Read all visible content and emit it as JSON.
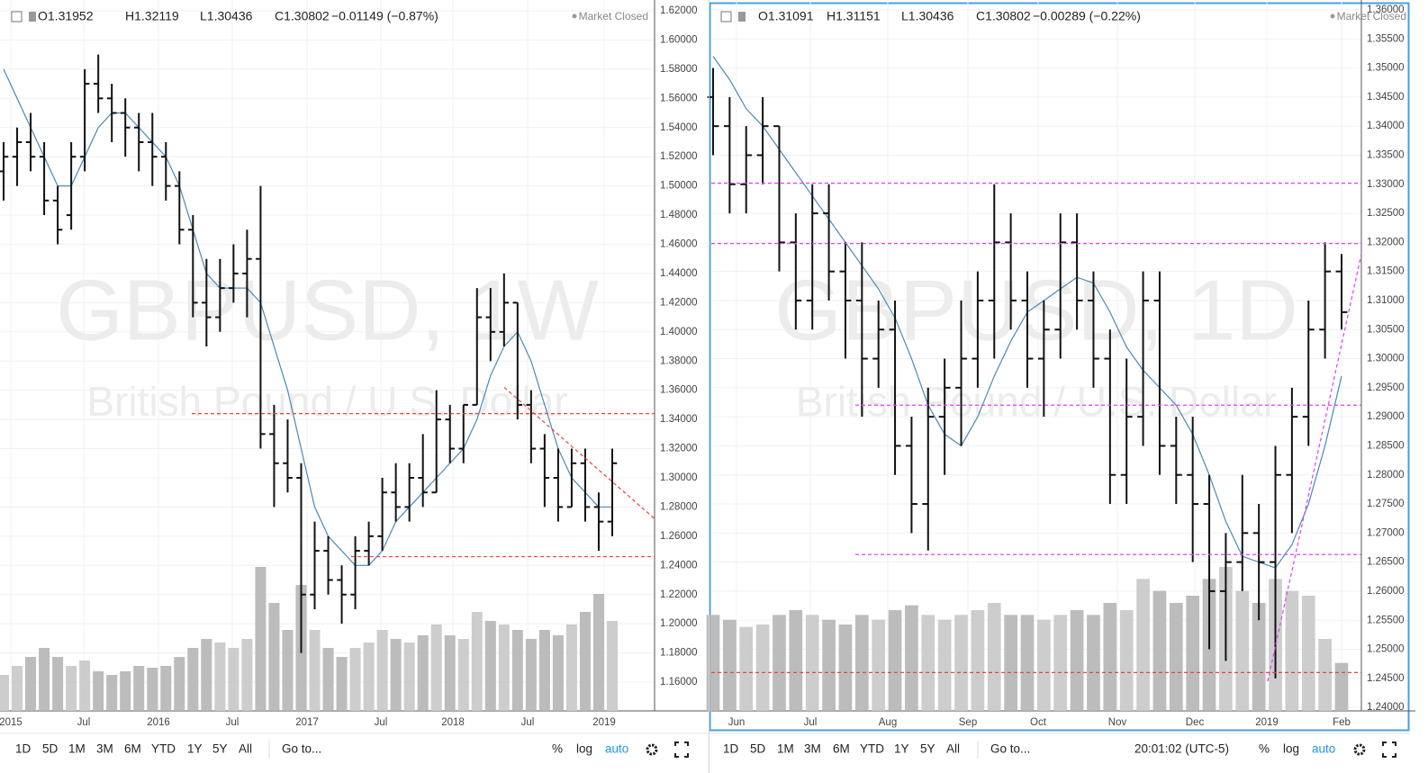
{
  "panels": [
    {
      "header": {
        "open": "O1.31952",
        "high": "H1.32119",
        "low": "L1.30436",
        "close": "C1.30802",
        "change": "−0.01149 (−0.87%)",
        "status": "Market Closed"
      },
      "watermark": "GBPUSD, 1W",
      "subtitle": "British Pound / U.S. Dollar",
      "chart_data": {
        "type": "ohlc",
        "ylim": [
          1.1403,
          1.6274
        ],
        "yticks": [
          {
            "value": 1.16,
            "label": "1.16000"
          },
          {
            "value": 1.18,
            "label": "1.18000"
          },
          {
            "value": 1.2,
            "label": "1.20000"
          },
          {
            "value": 1.22,
            "label": "1.22000"
          },
          {
            "value": 1.24,
            "label": "1.24000"
          },
          {
            "value": 1.26,
            "label": "1.26000"
          },
          {
            "value": 1.28,
            "label": "1.28000"
          },
          {
            "value": 1.3,
            "label": "1.30000"
          },
          {
            "value": 1.32,
            "label": "1.32000"
          },
          {
            "value": 1.34,
            "label": "1.34000"
          },
          {
            "value": 1.36,
            "label": "1.36000"
          },
          {
            "value": 1.38,
            "label": "1.38000"
          },
          {
            "value": 1.4,
            "label": "1.40000"
          },
          {
            "value": 1.42,
            "label": "1.42000"
          },
          {
            "value": 1.44,
            "label": "1.44000"
          },
          {
            "value": 1.46,
            "label": "1.46000"
          },
          {
            "value": 1.48,
            "label": "1.48000"
          },
          {
            "value": 1.5,
            "label": "1.50000"
          },
          {
            "value": 1.52,
            "label": "1.52000"
          },
          {
            "value": 1.54,
            "label": "1.54000"
          },
          {
            "value": 1.56,
            "label": "1.56000"
          },
          {
            "value": 1.58,
            "label": "1.58000"
          },
          {
            "value": 1.6,
            "label": "1.60000"
          },
          {
            "value": 1.62,
            "label": "1.62000"
          }
        ],
        "xlabels": [
          "2015",
          "Jul",
          "2016",
          "Jul",
          "2017",
          "Jul",
          "2018",
          "Jul",
          "2019"
        ],
        "bar_color": "#111111",
        "ma_color": "#4a8ab8",
        "volume_color": "#b5b5b5",
        "level_color": "#e8453c",
        "open": [
          1.51,
          1.52,
          1.53,
          1.52,
          1.49,
          1.48,
          1.52,
          1.57,
          1.56,
          1.55,
          1.54,
          1.53,
          1.52,
          1.5,
          1.47,
          1.42,
          1.41,
          1.43,
          1.44,
          1.45,
          1.33,
          1.31,
          1.3,
          1.22,
          1.25,
          1.23,
          1.22,
          1.25,
          1.26,
          1.29,
          1.28,
          1.3,
          1.29,
          1.34,
          1.32,
          1.35,
          1.41,
          1.4,
          1.42,
          1.35,
          1.32,
          1.3,
          1.28,
          1.31,
          1.28,
          1.27
        ],
        "high": [
          1.53,
          1.54,
          1.55,
          1.53,
          1.5,
          1.53,
          1.58,
          1.59,
          1.57,
          1.56,
          1.55,
          1.55,
          1.53,
          1.51,
          1.48,
          1.45,
          1.45,
          1.46,
          1.47,
          1.5,
          1.35,
          1.34,
          1.31,
          1.27,
          1.26,
          1.24,
          1.26,
          1.27,
          1.3,
          1.31,
          1.31,
          1.33,
          1.36,
          1.35,
          1.35,
          1.43,
          1.43,
          1.44,
          1.42,
          1.36,
          1.33,
          1.32,
          1.32,
          1.32,
          1.29,
          1.32
        ],
        "low": [
          1.49,
          1.5,
          1.51,
          1.48,
          1.46,
          1.47,
          1.51,
          1.55,
          1.53,
          1.52,
          1.51,
          1.5,
          1.49,
          1.46,
          1.41,
          1.39,
          1.4,
          1.42,
          1.41,
          1.32,
          1.28,
          1.29,
          1.18,
          1.21,
          1.22,
          1.2,
          1.21,
          1.24,
          1.25,
          1.27,
          1.27,
          1.28,
          1.29,
          1.31,
          1.31,
          1.35,
          1.38,
          1.39,
          1.34,
          1.31,
          1.28,
          1.27,
          1.28,
          1.27,
          1.25,
          1.26
        ],
        "close": [
          1.52,
          1.53,
          1.52,
          1.49,
          1.47,
          1.52,
          1.57,
          1.56,
          1.55,
          1.54,
          1.53,
          1.52,
          1.5,
          1.47,
          1.42,
          1.41,
          1.43,
          1.44,
          1.45,
          1.33,
          1.31,
          1.3,
          1.22,
          1.25,
          1.23,
          1.22,
          1.25,
          1.26,
          1.29,
          1.28,
          1.3,
          1.29,
          1.34,
          1.32,
          1.35,
          1.41,
          1.4,
          1.42,
          1.35,
          1.32,
          1.3,
          1.28,
          1.31,
          1.28,
          1.27,
          1.31
        ],
        "volume": [
          20,
          25,
          30,
          35,
          30,
          25,
          28,
          22,
          20,
          22,
          25,
          24,
          25,
          30,
          35,
          40,
          38,
          35,
          40,
          80,
          60,
          45,
          70,
          45,
          35,
          30,
          35,
          38,
          45,
          40,
          38,
          42,
          48,
          42,
          40,
          55,
          50,
          48,
          45,
          40,
          45,
          42,
          48,
          55,
          65,
          50
        ],
        "ma": [
          1.58,
          1.56,
          1.54,
          1.52,
          1.5,
          1.5,
          1.52,
          1.54,
          1.55,
          1.55,
          1.54,
          1.53,
          1.52,
          1.5,
          1.47,
          1.44,
          1.43,
          1.43,
          1.43,
          1.42,
          1.39,
          1.36,
          1.32,
          1.28,
          1.26,
          1.25,
          1.24,
          1.24,
          1.25,
          1.27,
          1.28,
          1.29,
          1.3,
          1.31,
          1.32,
          1.34,
          1.37,
          1.39,
          1.4,
          1.38,
          1.35,
          1.32,
          1.3,
          1.29,
          1.28,
          1.28
        ],
        "levels": [
          1.344,
          1.246
        ],
        "trend": [
          1.362,
          1.272
        ]
      }
    },
    {
      "header": {
        "open": "O1.31091",
        "high": "H1.31151",
        "low": "L1.30436",
        "close": "C1.30802",
        "change": "−0.00289 (−0.22%)",
        "status": "Market Closed"
      },
      "watermark": "GBPUSD, 1D",
      "subtitle": "British Pound / U.S. Dollar",
      "clock": "20:01:02 (UTC-5)",
      "chart_data": {
        "type": "ohlc",
        "ylim": [
          1.2394,
          1.3617
        ],
        "yticks": [
          {
            "value": 1.24,
            "label": "1.24000"
          },
          {
            "value": 1.245,
            "label": "1.24500"
          },
          {
            "value": 1.25,
            "label": "1.25000"
          },
          {
            "value": 1.255,
            "label": "1.25500"
          },
          {
            "value": 1.26,
            "label": "1.26000"
          },
          {
            "value": 1.265,
            "label": "1.26500"
          },
          {
            "value": 1.27,
            "label": "1.27000"
          },
          {
            "value": 1.275,
            "label": "1.27500"
          },
          {
            "value": 1.28,
            "label": "1.28000"
          },
          {
            "value": 1.285,
            "label": "1.28500"
          },
          {
            "value": 1.29,
            "label": "1.29000"
          },
          {
            "value": 1.295,
            "label": "1.29500"
          },
          {
            "value": 1.3,
            "label": "1.30000"
          },
          {
            "value": 1.305,
            "label": "1.30500"
          },
          {
            "value": 1.31,
            "label": "1.31000"
          },
          {
            "value": 1.315,
            "label": "1.31500"
          },
          {
            "value": 1.32,
            "label": "1.32000"
          },
          {
            "value": 1.325,
            "label": "1.32500"
          },
          {
            "value": 1.33,
            "label": "1.33000"
          },
          {
            "value": 1.335,
            "label": "1.33500"
          },
          {
            "value": 1.34,
            "label": "1.34000"
          },
          {
            "value": 1.345,
            "label": "1.34500"
          },
          {
            "value": 1.35,
            "label": "1.35000"
          },
          {
            "value": 1.355,
            "label": "1.35500"
          },
          {
            "value": 1.36,
            "label": "1.36000"
          }
        ],
        "xlabels": [
          "Jun",
          "Jul",
          "Aug",
          "Sep",
          "Oct",
          "Nov",
          "Dec",
          "2019",
          "Feb"
        ],
        "bar_color": "#111111",
        "ma_color": "#4a8ab8",
        "volume_color": "#b5b5b5",
        "level_color": "#e040fb",
        "open": [
          1.345,
          1.34,
          1.33,
          1.335,
          1.34,
          1.32,
          1.31,
          1.325,
          1.315,
          1.31,
          1.3,
          1.305,
          1.285,
          1.275,
          1.29,
          1.295,
          1.3,
          1.31,
          1.32,
          1.31,
          1.3,
          1.305,
          1.32,
          1.31,
          1.3,
          1.28,
          1.29,
          1.31,
          1.285,
          1.28,
          1.275,
          1.26,
          1.265,
          1.27,
          1.265,
          1.28,
          1.29,
          1.305,
          1.315
        ],
        "high": [
          1.35,
          1.345,
          1.34,
          1.345,
          1.34,
          1.325,
          1.33,
          1.33,
          1.32,
          1.32,
          1.31,
          1.31,
          1.29,
          1.295,
          1.3,
          1.31,
          1.315,
          1.33,
          1.325,
          1.315,
          1.31,
          1.325,
          1.325,
          1.315,
          1.305,
          1.3,
          1.315,
          1.315,
          1.29,
          1.29,
          1.28,
          1.27,
          1.28,
          1.275,
          1.285,
          1.295,
          1.31,
          1.32,
          1.318
        ],
        "low": [
          1.335,
          1.325,
          1.325,
          1.33,
          1.315,
          1.305,
          1.305,
          1.31,
          1.3,
          1.29,
          1.295,
          1.28,
          1.27,
          1.267,
          1.28,
          1.285,
          1.295,
          1.3,
          1.305,
          1.295,
          1.29,
          1.3,
          1.305,
          1.295,
          1.275,
          1.275,
          1.285,
          1.28,
          1.275,
          1.265,
          1.25,
          1.248,
          1.26,
          1.255,
          1.245,
          1.27,
          1.285,
          1.3,
          1.305
        ],
        "close": [
          1.34,
          1.33,
          1.335,
          1.34,
          1.32,
          1.31,
          1.325,
          1.315,
          1.31,
          1.3,
          1.305,
          1.285,
          1.275,
          1.29,
          1.295,
          1.3,
          1.31,
          1.32,
          1.31,
          1.3,
          1.305,
          1.32,
          1.31,
          1.3,
          1.28,
          1.29,
          1.31,
          1.285,
          1.28,
          1.275,
          1.26,
          1.265,
          1.27,
          1.265,
          1.28,
          1.29,
          1.305,
          1.315,
          1.308
        ],
        "volume": [
          40,
          38,
          35,
          36,
          40,
          42,
          40,
          38,
          36,
          40,
          38,
          42,
          44,
          40,
          38,
          40,
          42,
          45,
          40,
          40,
          38,
          40,
          42,
          40,
          45,
          42,
          55,
          50,
          45,
          48,
          55,
          60,
          50,
          45,
          55,
          50,
          48,
          30,
          20
        ],
        "ma": [
          1.352,
          1.348,
          1.343,
          1.34,
          1.336,
          1.332,
          1.328,
          1.324,
          1.32,
          1.316,
          1.312,
          1.307,
          1.3,
          1.292,
          1.287,
          1.285,
          1.29,
          1.297,
          1.303,
          1.308,
          1.31,
          1.312,
          1.314,
          1.313,
          1.308,
          1.302,
          1.298,
          1.295,
          1.292,
          1.287,
          1.28,
          1.272,
          1.266,
          1.265,
          1.264,
          1.268,
          1.275,
          1.285,
          1.297
        ],
        "levels": [
          1.3302,
          1.3198,
          1.292,
          1.2663,
          1.246
        ],
        "trend": [
          1.2445,
          1.318
        ]
      }
    }
  ],
  "toolbar": {
    "ranges": [
      "1D",
      "5D",
      "1M",
      "3M",
      "6M",
      "YTD",
      "1Y",
      "5Y",
      "All"
    ],
    "goto": "Go to...",
    "percent": "%",
    "log": "log",
    "auto": "auto"
  }
}
